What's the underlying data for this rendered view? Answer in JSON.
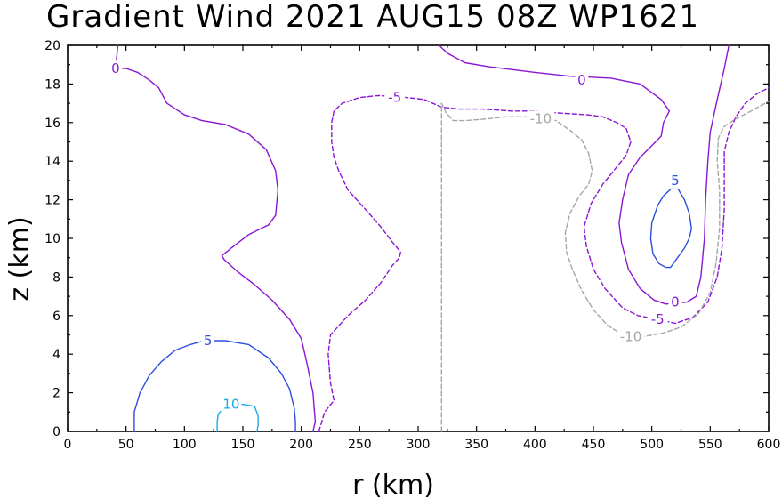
{
  "chart_data": {
    "type": "contour",
    "title": "Gradient Wind 2021 AUG15 08Z  WP1621",
    "xlabel": "r (km)",
    "ylabel": "z (km)",
    "xlim": [
      0,
      600
    ],
    "ylim": [
      0,
      20
    ],
    "xticks": [
      0,
      50,
      100,
      150,
      200,
      250,
      300,
      350,
      400,
      450,
      500,
      550,
      600
    ],
    "yticks": [
      0,
      2,
      4,
      6,
      8,
      10,
      12,
      14,
      16,
      18,
      20
    ],
    "grid": false,
    "colors": {
      "level_0": "#8a16d4",
      "level_5": "#2b4fe0",
      "level_10": "#1ea8ea",
      "level_neg5": "#8a16d4",
      "level_neg10": "#a6a6a6"
    },
    "contours": [
      {
        "level": 0,
        "label": "0",
        "style": "solid",
        "color": "#8a16d4",
        "label_points": [
          [
            41,
            18.8
          ],
          [
            440,
            18.2
          ],
          [
            520,
            6.7
          ]
        ],
        "lines": [
          [
            [
              43,
              20
            ],
            [
              41,
              18.8
            ],
            [
              50,
              18.8
            ],
            [
              60,
              18.6
            ],
            [
              70,
              18.2
            ],
            [
              78,
              17.8
            ],
            [
              85,
              17
            ],
            [
              100,
              16.4
            ],
            [
              115,
              16.1
            ],
            [
              135,
              15.9
            ],
            [
              155,
              15.4
            ],
            [
              170,
              14.6
            ],
            [
              178,
              13.5
            ],
            [
              180,
              12.5
            ],
            [
              178,
              11.2
            ],
            [
              172,
              10.7
            ],
            [
              155,
              10.2
            ],
            [
              140,
              9.5
            ],
            [
              132,
              9.1
            ],
            [
              134,
              8.9
            ],
            [
              145,
              8.3
            ],
            [
              160,
              7.6
            ],
            [
              175,
              6.8
            ],
            [
              190,
              5.8
            ],
            [
              200,
              4.8
            ],
            [
              205,
              3.5
            ],
            [
              210,
              2
            ],
            [
              212,
              0.5
            ],
            [
              210,
              0
            ]
          ],
          [
            [
              318,
              20
            ],
            [
              325,
              19.6
            ],
            [
              340,
              19.1
            ],
            [
              360,
              18.9
            ],
            [
              400,
              18.6
            ],
            [
              430,
              18.4
            ],
            [
              465,
              18.3
            ],
            [
              490,
              18
            ],
            [
              508,
              17.2
            ],
            [
              515,
              16.6
            ],
            [
              510,
              16
            ],
            [
              508,
              15.3
            ],
            [
              500,
              14.8
            ],
            [
              490,
              14.2
            ],
            [
              480,
              13.3
            ],
            [
              475,
              12
            ],
            [
              472,
              10.8
            ],
            [
              474,
              9.8
            ],
            [
              480,
              8.4
            ],
            [
              490,
              7.4
            ],
            [
              502,
              6.8
            ],
            [
              512,
              6.6
            ],
            [
              530,
              6.7
            ],
            [
              538,
              7
            ],
            [
              542,
              8
            ],
            [
              545,
              10
            ],
            [
              546,
              12
            ],
            [
              548,
              14
            ],
            [
              550,
              15.5
            ],
            [
              556,
              17.2
            ],
            [
              562,
              18.8
            ],
            [
              566,
              20
            ]
          ]
        ]
      },
      {
        "level": -5,
        "label": "-5",
        "style": "dashed",
        "color": "#8a16d4",
        "label_points": [
          [
            280,
            17.3
          ],
          [
            505,
            5.8
          ]
        ],
        "lines": [
          [
            [
              215,
              0
            ],
            [
              220,
              1
            ],
            [
              228,
              1.6
            ],
            [
              225,
              2.5
            ],
            [
              223,
              4
            ],
            [
              225,
              5
            ],
            [
              240,
              6
            ],
            [
              255,
              6.8
            ],
            [
              268,
              7.7
            ],
            [
              278,
              8.6
            ],
            [
              284,
              9
            ],
            [
              285,
              9.3
            ],
            [
              278,
              9.8
            ],
            [
              268,
              10.6
            ],
            [
              255,
              11.5
            ],
            [
              240,
              12.5
            ],
            [
              232,
              13.5
            ],
            [
              228,
              14.2
            ],
            [
              226,
              15
            ],
            [
              226,
              16
            ],
            [
              228,
              16.6
            ],
            [
              235,
              17
            ],
            [
              250,
              17.3
            ],
            [
              266,
              17.4
            ],
            [
              290,
              17.3
            ],
            [
              305,
              17.2
            ],
            [
              320,
              16.8
            ],
            [
              335,
              16.7
            ],
            [
              355,
              16.7
            ],
            [
              380,
              16.6
            ],
            [
              400,
              16.6
            ],
            [
              420,
              16.5
            ],
            [
              445,
              16.4
            ],
            [
              458,
              16.3
            ],
            [
              470,
              16
            ],
            [
              478,
              15.7
            ],
            [
              482,
              15
            ],
            [
              478,
              14.3
            ],
            [
              470,
              13.7
            ],
            [
              458,
              12.8
            ],
            [
              448,
              11.8
            ],
            [
              442,
              10.6
            ],
            [
              444,
              9.6
            ],
            [
              450,
              8.4
            ],
            [
              460,
              7.4
            ],
            [
              475,
              6.4
            ],
            [
              488,
              6
            ],
            [
              505,
              5.8
            ],
            [
              520,
              5.6
            ],
            [
              535,
              5.9
            ],
            [
              548,
              6.7
            ],
            [
              556,
              8
            ],
            [
              560,
              9.5
            ],
            [
              562,
              11.5
            ],
            [
              562,
              13
            ],
            [
              562,
              14.5
            ],
            [
              566,
              15.5
            ],
            [
              572,
              16.3
            ],
            [
              580,
              17
            ],
            [
              590,
              17.5
            ],
            [
              600,
              17.8
            ]
          ]
        ]
      },
      {
        "level": -10,
        "label": "-10",
        "style": "dashed",
        "color": "#a6a6a6",
        "label_points": [
          [
            405,
            16.2
          ],
          [
            482,
            4.9
          ]
        ],
        "lines": [
          [
            [
              320,
              0
            ],
            [
              320,
              17
            ],
            [
              324,
              16.5
            ],
            [
              330,
              16.1
            ],
            [
              340,
              16.1
            ],
            [
              360,
              16.2
            ],
            [
              375,
              16.3
            ],
            [
              392,
              16.3
            ],
            [
              418,
              16.1
            ],
            [
              430,
              15.6
            ],
            [
              440,
              15.1
            ],
            [
              446,
              14.4
            ],
            [
              449,
              13.5
            ],
            [
              446,
              12.8
            ],
            [
              438,
              12.2
            ],
            [
              430,
              11.3
            ],
            [
              426,
              10.3
            ],
            [
              427,
              9.3
            ],
            [
              432,
              8.4
            ],
            [
              440,
              7.3
            ],
            [
              450,
              6.3
            ],
            [
              462,
              5.5
            ],
            [
              475,
              5
            ],
            [
              492,
              4.9
            ],
            [
              510,
              5.1
            ],
            [
              525,
              5.4
            ],
            [
              540,
              6.1
            ],
            [
              550,
              7.2
            ],
            [
              555,
              8.7
            ],
            [
              558,
              10.5
            ],
            [
              558,
              12.5
            ],
            [
              556,
              14
            ],
            [
              557,
              15.2
            ],
            [
              562,
              15.8
            ],
            [
              572,
              16.2
            ],
            [
              585,
              16.6
            ],
            [
              600,
              17.1
            ]
          ]
        ]
      },
      {
        "level": 5,
        "label": "5",
        "style": "solid",
        "color": "#2b4fe0",
        "label_points": [
          [
            120,
            4.7
          ],
          [
            520,
            13
          ]
        ],
        "lines": [
          [
            [
              57,
              0
            ],
            [
              57,
              1
            ],
            [
              62,
              2
            ],
            [
              70,
              2.9
            ],
            [
              80,
              3.6
            ],
            [
              92,
              4.2
            ],
            [
              105,
              4.5
            ],
            [
              117,
              4.7
            ],
            [
              135,
              4.7
            ],
            [
              155,
              4.5
            ],
            [
              172,
              3.8
            ],
            [
              183,
              3
            ],
            [
              190,
              2.2
            ],
            [
              194,
              1.2
            ],
            [
              195,
              0.5
            ],
            [
              195,
              0
            ]
          ],
          [
            [
              517,
              12.6
            ],
            [
              510,
              12.2
            ],
            [
              505,
              11.7
            ],
            [
              500,
              10.8
            ],
            [
              499,
              10
            ],
            [
              501,
              9.2
            ],
            [
              506,
              8.7
            ],
            [
              512,
              8.5
            ],
            [
              516,
              8.5
            ],
            [
              522,
              9
            ],
            [
              528,
              9.5
            ],
            [
              532,
              10
            ],
            [
              534,
              10.5
            ],
            [
              532,
              11.3
            ],
            [
              528,
              12
            ],
            [
              522,
              12.6
            ],
            [
              517,
              12.6
            ]
          ]
        ]
      },
      {
        "level": 10,
        "label": "10",
        "style": "solid",
        "color": "#1ea8ea",
        "label_points": [
          [
            140,
            1.4
          ]
        ],
        "lines": [
          [
            [
              128,
              0
            ],
            [
              128,
              0.5
            ],
            [
              129,
              0.9
            ],
            [
              135,
              1.3
            ],
            [
              150,
              1.4
            ],
            [
              160,
              1.3
            ],
            [
              163,
              0.8
            ],
            [
              163,
              0.3
            ],
            [
              162,
              0
            ]
          ]
        ]
      }
    ]
  }
}
